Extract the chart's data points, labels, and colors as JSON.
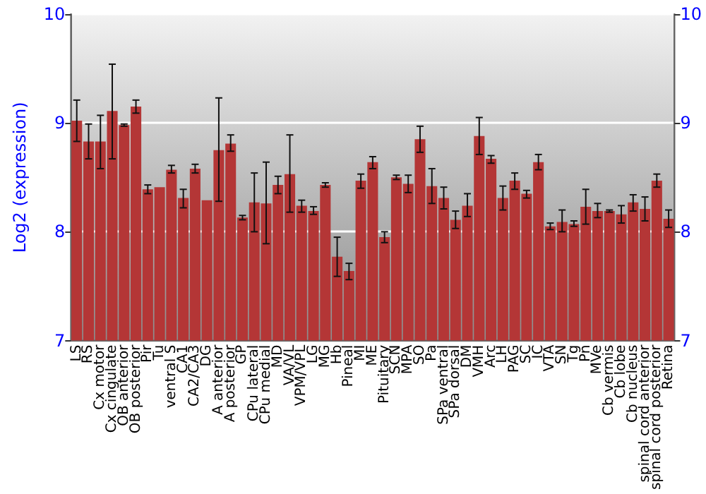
{
  "chart_data": {
    "type": "bar",
    "ylabel": "Log2 (expression)",
    "categories": [
      "LS",
      "RS",
      "Cx motor",
      "Cx cingulate",
      "OB anterior",
      "OB posterior",
      "Pir",
      "Tu",
      "ventral S",
      "CA1",
      "CA2/CA3",
      "DG",
      "A anterior",
      "A posterior",
      "GP",
      "CPu lateral",
      "CPu medial",
      "MD",
      "VA/VL",
      "VPM/VPL",
      "LG",
      "MG",
      "Hb",
      "Pineal",
      "MI",
      "ME",
      "Pituitary",
      "SCN",
      "MPA",
      "SO",
      "Pa",
      "SPa ventral",
      "SPa dorsal",
      "DM",
      "VMH",
      "Arc",
      "LH",
      "PAG",
      "SC",
      "IC",
      "VTA",
      "SN",
      "Tg",
      "Pn",
      "MVe",
      "Cb vermis",
      "Cb lobe",
      "Cb nucleus",
      "spinal cord anterior",
      "spinal cord posterior",
      "Retina"
    ],
    "series": [
      {
        "color": "#b43636",
        "values": [
          9.02,
          8.83,
          8.83,
          9.11,
          8.98,
          9.15,
          8.39,
          8.41,
          8.57,
          8.31,
          8.58,
          8.29,
          8.75,
          8.81,
          8.13,
          8.27,
          8.26,
          8.43,
          8.53,
          8.24,
          8.19,
          8.43,
          7.77,
          7.64,
          8.47,
          8.64,
          7.95,
          8.5,
          8.44,
          8.85,
          8.42,
          8.31,
          8.11,
          8.24,
          8.88,
          8.67,
          8.31,
          8.47,
          8.35,
          8.64,
          8.05,
          8.09,
          8.07,
          8.23,
          8.19,
          8.19,
          8.16,
          8.27,
          8.21,
          8.47,
          8.12
        ],
        "errors": [
          [
            8.83,
            9.21
          ],
          [
            8.67,
            8.99
          ],
          [
            8.58,
            9.07
          ],
          [
            8.67,
            9.54
          ],
          0.01,
          [
            9.09,
            9.21
          ],
          [
            8.35,
            8.43
          ],
          null,
          [
            8.54,
            8.61
          ],
          [
            8.22,
            8.39
          ],
          [
            8.54,
            8.62
          ],
          null,
          [
            8.28,
            9.23
          ],
          [
            8.74,
            8.89
          ],
          [
            8.11,
            8.15
          ],
          [
            8.0,
            8.54
          ],
          [
            7.89,
            8.64
          ],
          [
            8.35,
            8.51
          ],
          [
            8.18,
            8.89
          ],
          [
            8.18,
            8.29
          ],
          [
            8.16,
            8.23
          ],
          0.02,
          [
            7.59,
            7.95
          ],
          [
            7.56,
            7.71
          ],
          [
            8.4,
            8.53
          ],
          [
            8.58,
            8.69
          ],
          [
            7.9,
            8.0
          ],
          [
            8.48,
            8.52
          ],
          [
            8.36,
            8.52
          ],
          [
            8.73,
            8.97
          ],
          [
            8.26,
            8.58
          ],
          [
            8.21,
            8.41
          ],
          [
            8.03,
            8.19
          ],
          [
            8.14,
            8.35
          ],
          [
            8.71,
            9.05
          ],
          [
            8.63,
            8.7
          ],
          [
            8.2,
            8.42
          ],
          [
            8.39,
            8.54
          ],
          [
            8.31,
            8.38
          ],
          [
            8.57,
            8.71
          ],
          [
            8.02,
            8.08
          ],
          [
            8.0,
            8.2
          ],
          [
            8.05,
            8.1
          ],
          [
            8.07,
            8.39
          ],
          [
            8.13,
            8.26
          ],
          0.01,
          [
            8.08,
            8.24
          ],
          [
            8.19,
            8.34
          ],
          [
            8.1,
            8.32
          ],
          [
            8.41,
            8.53
          ],
          [
            8.04,
            8.2
          ]
        ]
      }
    ],
    "ylim": [
      7,
      10
    ],
    "yticks": [
      7,
      8,
      9,
      10
    ],
    "y2lim": [
      7,
      10
    ],
    "y2ticks": [
      7,
      8,
      9,
      10
    ],
    "grid": "y"
  }
}
